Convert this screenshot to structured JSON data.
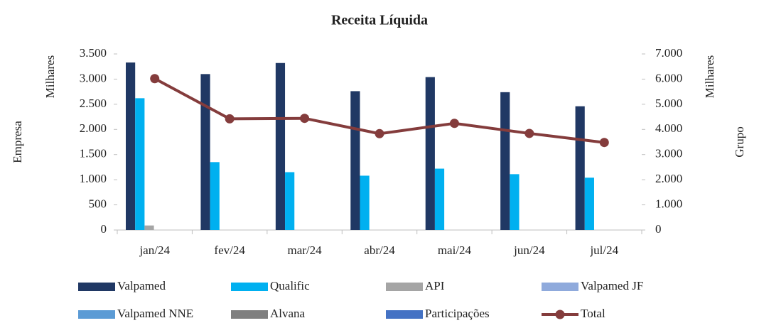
{
  "chart_data": {
    "type": "bar",
    "title": "Receita Líquida",
    "y_label": "Empresa",
    "y_unit": "Milhares",
    "y2_label": "Grupo",
    "y2_unit": "Milhares",
    "categories": [
      "jan/24",
      "fev/24",
      "mar/24",
      "abr/24",
      "mai/24",
      "jun/24",
      "jul/24"
    ],
    "series": [
      {
        "name": "Valpamed",
        "color": "#203864",
        "values": [
          3330,
          3100,
          3320,
          2760,
          3040,
          2740,
          2460
        ]
      },
      {
        "name": "Qualific",
        "color": "#00b0f0",
        "values": [
          2620,
          1350,
          1150,
          1080,
          1220,
          1110,
          1040
        ]
      },
      {
        "name": "API",
        "color": "#a5a5a5",
        "values": [
          90,
          0,
          0,
          0,
          0,
          0,
          0
        ]
      },
      {
        "name": "Valpamed JF",
        "color": "#8faadc",
        "values": [
          0,
          0,
          0,
          0,
          0,
          0,
          0
        ]
      },
      {
        "name": "Valpamed NNE",
        "color": "#5b9bd5",
        "values": [
          0,
          0,
          0,
          0,
          0,
          0,
          0
        ]
      },
      {
        "name": "Alvana",
        "color": "#7f7f7f",
        "values": [
          0,
          0,
          0,
          0,
          0,
          0,
          0
        ]
      },
      {
        "name": "Participações",
        "color": "#4472c4",
        "values": [
          0,
          0,
          0,
          0,
          0,
          0,
          0
        ]
      },
      {
        "name": "Total",
        "color": "#843c3c",
        "type": "line",
        "axis": "y2",
        "values": [
          6020,
          4420,
          4440,
          3830,
          4240,
          3840,
          3480
        ]
      }
    ],
    "ylim": [
      0,
      3500
    ],
    "yticks": [
      0,
      500,
      {
        "value": 1000,
        "label": "1.000"
      },
      {
        "value": 1500,
        "label": "1.500"
      },
      {
        "value": 2000,
        "label": "2.000"
      },
      {
        "value": 2500,
        "label": "2.500"
      },
      {
        "value": 3000,
        "label": "3.000"
      },
      {
        "value": 3500,
        "label": "3.500"
      }
    ],
    "y2lim": [
      0,
      7000
    ],
    "y2ticks": [
      0,
      {
        "value": 1000,
        "label": "1.000"
      },
      {
        "value": 2000,
        "label": "2.000"
      },
      {
        "value": 3000,
        "label": "3.000"
      },
      {
        "value": 4000,
        "label": "4.000"
      },
      {
        "value": 5000,
        "label": "5.000"
      },
      {
        "value": 6000,
        "label": "6.000"
      },
      {
        "value": 7000,
        "label": "7.000"
      }
    ],
    "legend": "bottom"
  }
}
